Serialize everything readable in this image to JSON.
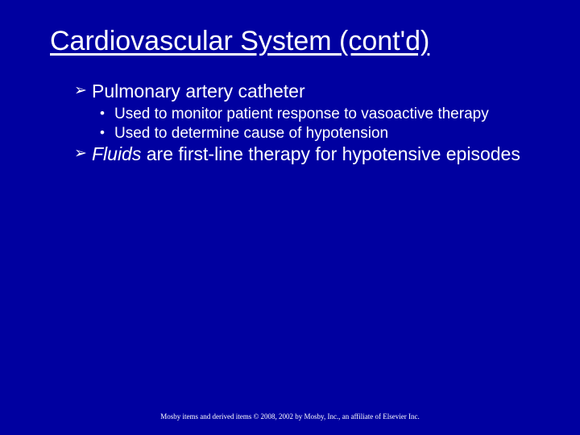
{
  "slide": {
    "background_color": "#0000a0",
    "text_color": "#ffffff",
    "title": {
      "text": "Cardiovascular System (cont'd)",
      "fontsize": 34,
      "underline": true
    },
    "bullets": [
      {
        "level": 1,
        "glyph": "➢",
        "text": "Pulmonary artery catheter",
        "fontsize": 23
      },
      {
        "level": 2,
        "glyph": "•",
        "text": "Used to monitor patient response to vasoactive therapy",
        "fontsize": 19
      },
      {
        "level": 2,
        "glyph": "•",
        "text": "Used to determine cause of hypotension",
        "fontsize": 19
      },
      {
        "level": 1,
        "glyph": "➢",
        "italic_lead": "Fluids",
        "text_rest": " are first-line therapy for hypotensive episodes",
        "fontsize": 23
      }
    ],
    "footer": {
      "text": "Mosby items and derived items © 2008, 2002 by Mosby, Inc., an affiliate of Elsevier Inc.",
      "fontsize": 9,
      "font_family": "Times New Roman"
    }
  }
}
